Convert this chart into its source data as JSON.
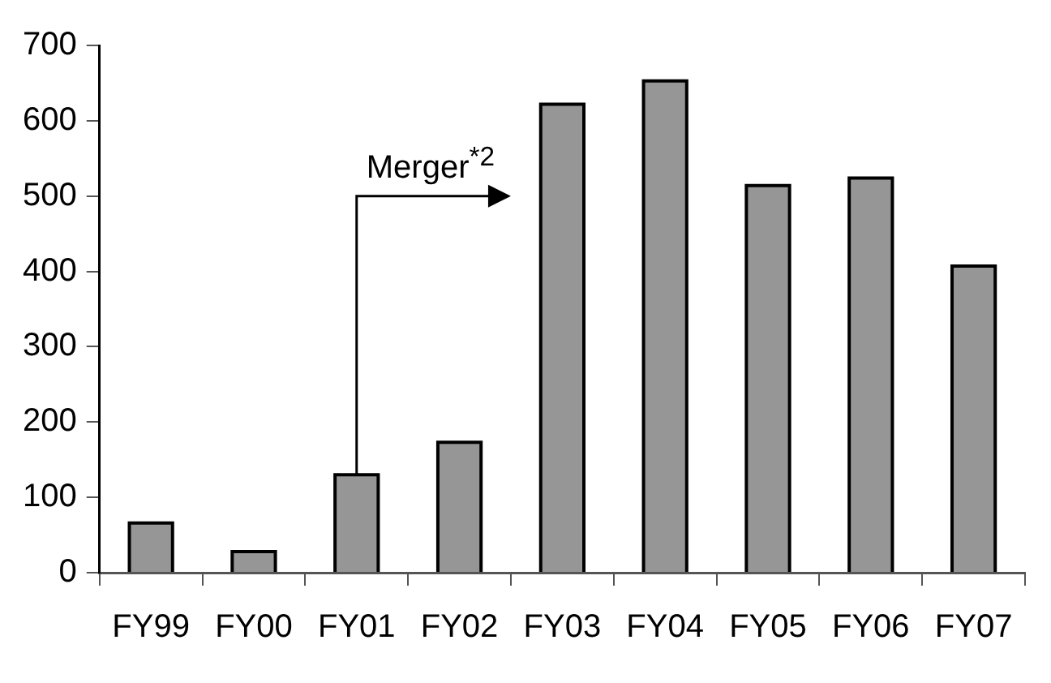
{
  "chart_data": {
    "type": "bar",
    "categories": [
      "FY99",
      "FY00",
      "FY01",
      "FY02",
      "FY03",
      "FY04",
      "FY05",
      "FY06",
      "FY07"
    ],
    "values": [
      66,
      28,
      130,
      173,
      622,
      653,
      514,
      524,
      407
    ],
    "color": "#969696",
    "ylim": [
      0,
      700
    ],
    "yticks": [
      0,
      100,
      200,
      300,
      400,
      500,
      600,
      700
    ],
    "grid": false,
    "legend": false,
    "annotations": [
      "Merger$^{*2}$"
    ]
  }
}
